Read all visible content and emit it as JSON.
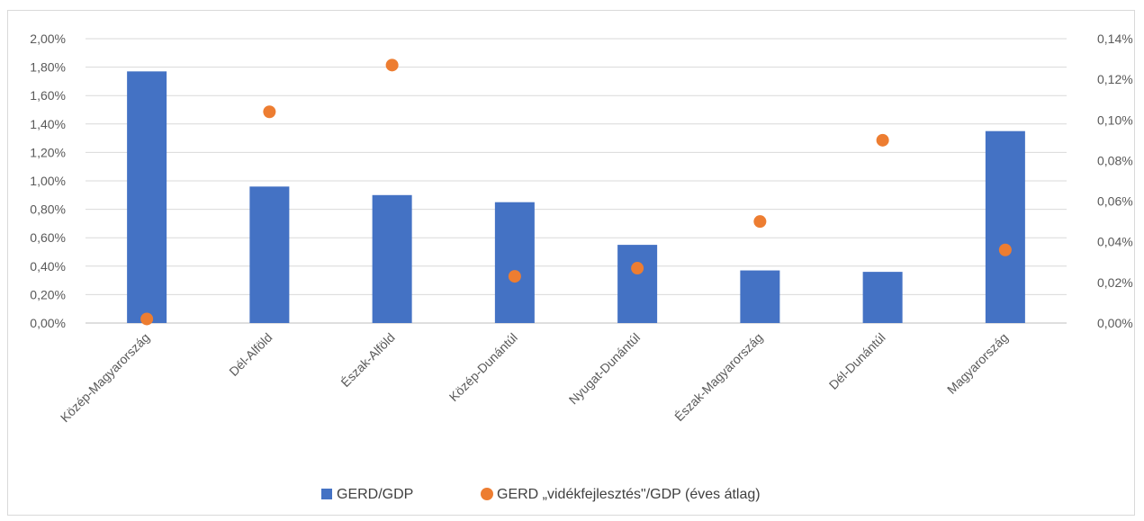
{
  "chart_data": {
    "type": "bar",
    "categories": [
      "Közép-Magyarország",
      "Dél-Alföld",
      "Észak-Alföld",
      "Közép-Dunántúl",
      "Nyugat-Dunántúl",
      "Észak-Magyarország",
      "Dél-Dunántúl",
      "Magyarország"
    ],
    "series": [
      {
        "name": "GERD/GDP",
        "type": "bar",
        "axis": "left",
        "color": "#4472c4",
        "values": [
          1.77,
          0.96,
          0.9,
          0.85,
          0.55,
          0.37,
          0.36,
          1.35
        ]
      },
      {
        "name": "GERD „vidékfejlesztés\"/GDP (éves átlag)",
        "type": "scatter",
        "axis": "right",
        "color": "#ed7d31",
        "values": [
          0.002,
          0.104,
          0.127,
          0.023,
          0.027,
          0.05,
          0.09,
          0.036
        ]
      }
    ],
    "y_left": {
      "ylim": [
        0,
        2.0
      ],
      "ticks": [
        "0,00%",
        "0,20%",
        "0,40%",
        "0,60%",
        "0,80%",
        "1,00%",
        "1,20%",
        "1,40%",
        "1,60%",
        "1,80%",
        "2,00%"
      ]
    },
    "y_right": {
      "ylim": [
        0,
        0.14
      ],
      "ticks": [
        "0,00%",
        "0,02%",
        "0,04%",
        "0,06%",
        "0,08%",
        "0,10%",
        "0,12%",
        "0,14%"
      ]
    },
    "grid": true,
    "legend": "bottom"
  }
}
